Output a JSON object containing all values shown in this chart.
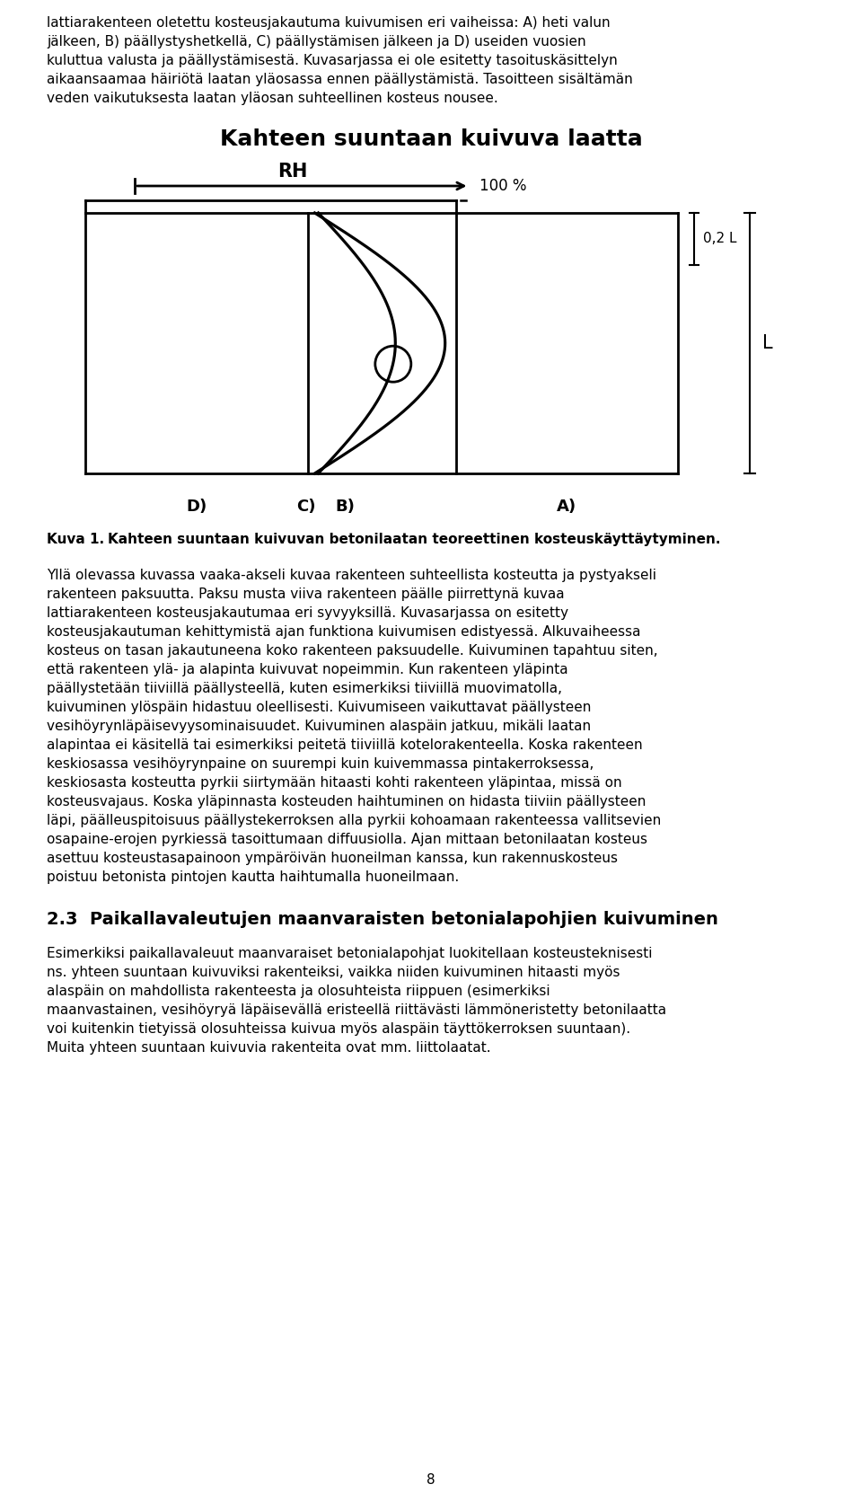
{
  "title": "Kahteen suuntaan kuivuva laatta",
  "rh_label": "RH",
  "rh_arrow_label": "100 %",
  "dim_label": "0,2 L",
  "L_label": "L",
  "caption_bold": "Kuva 1.",
  "caption_text": "Kahteen suuntaan kuivuvan betonilaatan teoreettinen kosteuskäyttäytyminen.",
  "top_lines": [
    "lattiarakenteen oletettu kosteusjakautuma kuivumisen eri vaiheissa: A) heti valun",
    "jälkeen, B) päällystyshetkellä, C) päällystämisen jälkeen ja D) useiden vuosien",
    "kuluttua valusta ja päällystämisestä. Kuvasarjassa ei ole esitetty tasoituskäsittelyn",
    "aikaansaamaa häiriötä laatan yläosassa ennen päällystämistä. Tasoitteen sisältämän",
    "veden vaikutuksesta laatan yläosan suhteellinen kosteus nousee."
  ],
  "para2_lines": [
    "Yllä olevassa kuvassa vaaka-akseli kuvaa rakenteen suhteellista kosteutta ja pystyakseli",
    "rakenteen paksuutta. Paksu musta viiva rakenteen päälle piirrettynä kuvaa",
    "lattiarakenteen kosteusjakautumaa eri syvyyksillä. Kuvasarjassa on esitetty",
    "kosteusjakautuman kehittymistä ajan funktiona kuivumisen edistyessä. Alkuvaiheessa",
    "kosteus on tasan jakautuneena koko rakenteen paksuudelle. Kuivuminen tapahtuu siten,",
    "että rakenteen ylä- ja alapinta kuivuvat nopeimmin. Kun rakenteen yläpinta",
    "päällystetään tiiviillä päällysteellä, kuten esimerkiksi tiiviillä muovimatolla,",
    "kuivuminen ylöspäin hidastuu oleellisesti. Kuivumiseen vaikuttavat päällysteen",
    "vesihöyrynläpäisevyysominaisuudet. Kuivuminen alaspäin jatkuu, mikäli laatan",
    "alapintaa ei käsitellä tai esimerkiksi peitetä tiiviillä kotelorakenteella. Koska rakenteen",
    "keskiosassa vesihöyrynpaine on suurempi kuin kuivemmassa pintakerroksessa,",
    "keskiosasta kosteutta pyrkii siirtymään hitaasti kohti rakenteen yläpintaa, missä on",
    "kosteusvajaus. Koska yläpinnasta kosteuden haihtuminen on hidasta tiiviin päällysteen",
    "läpi, päälleuspitoisuus päällystekerroksen alla pyrkii kohoamaan rakenteessa vallitsevien",
    "osapaine-erojen pyrkiessä tasoittumaan diffuusiolla. Ajan mittaan betonilaatan kosteus",
    "asettuu kosteustasapainoon ympäröivän huoneilman kanssa, kun rakennuskosteus",
    "poistuu betonista pintojen kautta haihtumalla huoneilmaan."
  ],
  "section_title": "2.3  Paikallavaleutujen maanvaraisten betonialapohjien kuivuminen",
  "para3_lines": [
    "Esimerkiksi paikallavaleuut maanvaraiset betonialapohjat luokitellaan kosteusteknisesti",
    "ns. yhteen suuntaan kuivuviksi rakenteiksi, vaikka niiden kuivuminen hitaasti myös",
    "alaspäin on mahdollista rakenteesta ja olosuhteista riippuen (esimerkiksi",
    "maanvastainen, vesihöyryä läpäisevällä eristeellä riittävästi lämmöneristetty betonilaatta",
    "voi kuitenkin tietyissä olosuhteissa kuivua myös alaspäin täyttökerroksen suuntaan).",
    "Muita yhteen suuntaan kuivuvia rakenteita ovat mm. liittolaatat."
  ],
  "page_number": "8",
  "text_color": "#000000",
  "bg_color": "#ffffff",
  "line_color": "#000000"
}
